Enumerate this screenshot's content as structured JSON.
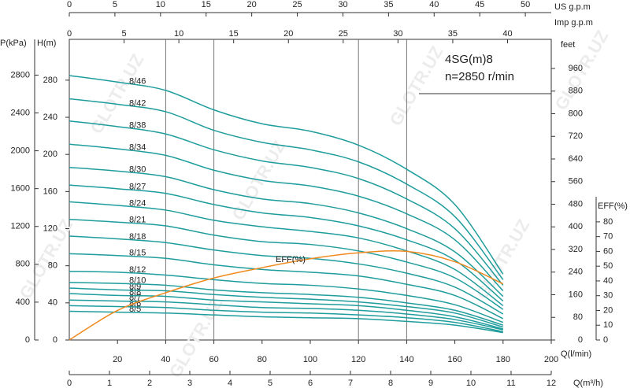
{
  "chart_data": {
    "type": "line",
    "title": "4SG(m)8",
    "subtitle": "n=2850 r/min",
    "watermark": "GLOTR.UZ",
    "x": [
      0,
      20,
      40,
      60,
      80,
      100,
      120,
      140,
      160,
      180
    ],
    "xlabel": "Q(l/min)",
    "xlim": [
      0,
      200
    ],
    "xticks": [
      20,
      40,
      60,
      80,
      100,
      120,
      140,
      160,
      180,
      200
    ],
    "xgrid": [
      40,
      60,
      120,
      140
    ],
    "ylabel": "H(m)",
    "ylim": [
      0,
      324
    ],
    "yticks": [
      0,
      40,
      80,
      120,
      160,
      200,
      240,
      280
    ],
    "y2label": "EFF(%)",
    "y2lim": [
      0,
      97
    ],
    "y2ticks": [
      0,
      10,
      20,
      30,
      40,
      50,
      60,
      70,
      80
    ],
    "us_axis": {
      "label": "US  g.p.m",
      "lim": [
        0,
        52.84
      ],
      "ticks": [
        0,
        5,
        10,
        15,
        20,
        25,
        30,
        35,
        40,
        45,
        50
      ]
    },
    "imp_axis": {
      "label": "Imp  g.p.m",
      "lim": [
        0,
        43.99
      ],
      "ticks": [
        0,
        5,
        10,
        15,
        20,
        25,
        30,
        35,
        40
      ]
    },
    "m3h_axis": {
      "label": "Q(m³/h)",
      "lim": [
        0,
        12
      ],
      "ticks": [
        0,
        1,
        2,
        3,
        4,
        5,
        6,
        7,
        8,
        9,
        10,
        11,
        12
      ]
    },
    "kpa_axis": {
      "label": "P(kPa)",
      "lim": [
        0,
        3178
      ],
      "ticks": [
        0,
        400,
        800,
        1200,
        1600,
        2000,
        2400,
        2800
      ]
    },
    "feet_axis": {
      "label": "feet",
      "lim": [
        0,
        1063
      ],
      "ticks": [
        0,
        80,
        160,
        240,
        320,
        400,
        480,
        560,
        640,
        720,
        800,
        880,
        960
      ]
    },
    "series": [
      {
        "name": "8/5",
        "color": "#1f9c9c",
        "values": [
          31,
          30,
          29,
          27,
          25,
          24,
          23,
          20,
          16,
          8
        ]
      },
      {
        "name": "8/6",
        "color": "#1f9c9c",
        "values": [
          37,
          36,
          35,
          32,
          30,
          29,
          27,
          24,
          19,
          9
        ]
      },
      {
        "name": "8/7",
        "color": "#1f9c9c",
        "values": [
          43,
          42,
          41,
          38,
          35,
          34,
          32,
          28,
          22,
          11
        ]
      },
      {
        "name": "8/8",
        "color": "#1f9c9c",
        "values": [
          50,
          48,
          47,
          43,
          41,
          39,
          37,
          32,
          25,
          12
        ]
      },
      {
        "name": "8/9",
        "color": "#1f9c9c",
        "values": [
          56,
          54,
          53,
          49,
          46,
          44,
          41,
          36,
          29,
          14
        ]
      },
      {
        "name": "8/10",
        "color": "#1f9c9c",
        "values": [
          62,
          61,
          59,
          54,
          51,
          49,
          46,
          40,
          32,
          16
        ]
      },
      {
        "name": "8/12",
        "color": "#1f9c9c",
        "values": [
          74,
          73,
          70,
          65,
          61,
          59,
          55,
          48,
          38,
          19
        ]
      },
      {
        "name": "8/15",
        "color": "#1f9c9c",
        "values": [
          93,
          91,
          88,
          81,
          76,
          73,
          69,
          60,
          48,
          23
        ]
      },
      {
        "name": "8/18",
        "color": "#1f9c9c",
        "values": [
          112,
          109,
          105,
          97,
          91,
          88,
          82,
          72,
          57,
          28
        ]
      },
      {
        "name": "8/21",
        "color": "#1f9c9c",
        "values": [
          130,
          127,
          123,
          113,
          106,
          103,
          96,
          84,
          67,
          33
        ]
      },
      {
        "name": "8/24",
        "color": "#1f9c9c",
        "values": [
          149,
          145,
          140,
          129,
          122,
          117,
          110,
          96,
          76,
          37
        ]
      },
      {
        "name": "8/27",
        "color": "#1f9c9c",
        "values": [
          167,
          163,
          158,
          146,
          137,
          132,
          123,
          108,
          86,
          42
        ]
      },
      {
        "name": "8/30",
        "color": "#1f9c9c",
        "values": [
          186,
          182,
          176,
          162,
          152,
          147,
          137,
          120,
          95,
          47
        ]
      },
      {
        "name": "8/34",
        "color": "#1f9c9c",
        "values": [
          211,
          206,
          199,
          183,
          172,
          166,
          155,
          136,
          108,
          53
        ]
      },
      {
        "name": "8/38",
        "color": "#1f9c9c",
        "values": [
          236,
          230,
          222,
          205,
          193,
          186,
          174,
          152,
          120,
          59
        ]
      },
      {
        "name": "8/42",
        "color": "#1f9c9c",
        "values": [
          260,
          254,
          246,
          226,
          213,
          205,
          192,
          168,
          133,
          65
        ]
      },
      {
        "name": "8/46",
        "color": "#1f9c9c",
        "values": [
          285,
          278,
          269,
          248,
          233,
          225,
          210,
          184,
          146,
          71
        ]
      },
      {
        "name": "EFF(%)",
        "color": "#f08a1e",
        "axis": "y2",
        "values": [
          0,
          20,
          32,
          42,
          49,
          55,
          59,
          60,
          53,
          38
        ]
      }
    ]
  }
}
